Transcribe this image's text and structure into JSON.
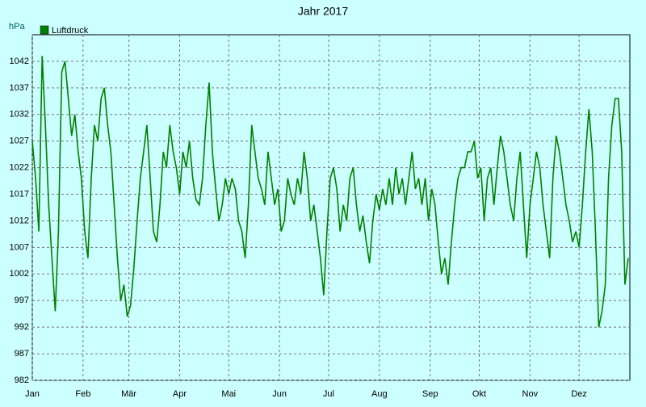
{
  "chart_data": {
    "type": "line",
    "title": "Jahr 2017",
    "y_label": "hPa",
    "xlim": [
      0,
      365
    ],
    "xticks": [
      {
        "value": 0,
        "label": "Jan"
      },
      {
        "value": 31,
        "label": "Feb"
      },
      {
        "value": 59,
        "label": "Mär"
      },
      {
        "value": 90,
        "label": "Apr"
      },
      {
        "value": 120,
        "label": "Mai"
      },
      {
        "value": 151,
        "label": "Jun"
      },
      {
        "value": 181,
        "label": "Jul"
      },
      {
        "value": 212,
        "label": "Aug"
      },
      {
        "value": 243,
        "label": "Sep"
      },
      {
        "value": 273,
        "label": "Okt"
      },
      {
        "value": 304,
        "label": "Nov"
      },
      {
        "value": 334,
        "label": "Dez"
      }
    ],
    "ylim": [
      982,
      1047
    ],
    "yticks": [
      982,
      987,
      992,
      997,
      1002,
      1007,
      1012,
      1017,
      1022,
      1027,
      1032,
      1037,
      1042
    ],
    "grid": true,
    "x": [
      0,
      2,
      4,
      6,
      8,
      10,
      12,
      14,
      16,
      18,
      20,
      22,
      24,
      26,
      28,
      30,
      32,
      34,
      36,
      38,
      40,
      42,
      44,
      46,
      48,
      50,
      52,
      54,
      56,
      58,
      60,
      62,
      64,
      66,
      68,
      70,
      72,
      74,
      76,
      78,
      80,
      82,
      84,
      86,
      88,
      90,
      92,
      94,
      96,
      98,
      100,
      102,
      104,
      106,
      108,
      110,
      112,
      114,
      116,
      118,
      120,
      122,
      124,
      126,
      128,
      130,
      132,
      134,
      136,
      138,
      140,
      142,
      144,
      146,
      148,
      150,
      152,
      154,
      156,
      158,
      160,
      162,
      164,
      166,
      168,
      170,
      172,
      174,
      176,
      178,
      180,
      182,
      184,
      186,
      188,
      190,
      192,
      194,
      196,
      198,
      200,
      202,
      204,
      206,
      208,
      210,
      212,
      214,
      216,
      218,
      220,
      222,
      224,
      226,
      228,
      230,
      232,
      234,
      236,
      238,
      240,
      242,
      244,
      246,
      248,
      250,
      252,
      254,
      256,
      258,
      260,
      262,
      264,
      266,
      268,
      270,
      272,
      274,
      276,
      278,
      280,
      282,
      284,
      286,
      288,
      290,
      292,
      294,
      296,
      298,
      300,
      302,
      304,
      306,
      308,
      310,
      312,
      314,
      316,
      318,
      320,
      322,
      324,
      326,
      328,
      330,
      332,
      334,
      336,
      338,
      340,
      342,
      344,
      346,
      348,
      350,
      352,
      354,
      356,
      358,
      360,
      362,
      364
    ],
    "series": [
      {
        "name": "Luftdruck",
        "color": "#008000",
        "values": [
          1027,
          1020,
          1010,
          1043,
          1030,
          1015,
          1005,
          995,
          1010,
          1040,
          1042,
          1035,
          1028,
          1032,
          1025,
          1020,
          1010,
          1005,
          1020,
          1030,
          1027,
          1035,
          1037,
          1030,
          1025,
          1015,
          1005,
          997,
          1000,
          994,
          996,
          1003,
          1012,
          1020,
          1025,
          1030,
          1020,
          1010,
          1008,
          1015,
          1025,
          1022,
          1030,
          1025,
          1022,
          1017,
          1025,
          1022,
          1027,
          1020,
          1016,
          1015,
          1020,
          1030,
          1038,
          1025,
          1018,
          1012,
          1015,
          1020,
          1017,
          1020,
          1018,
          1012,
          1010,
          1005,
          1015,
          1030,
          1025,
          1020,
          1018,
          1015,
          1025,
          1020,
          1015,
          1018,
          1010,
          1012,
          1020,
          1017,
          1015,
          1020,
          1017,
          1025,
          1020,
          1012,
          1015,
          1010,
          1005,
          998,
          1010,
          1020,
          1022,
          1018,
          1010,
          1015,
          1012,
          1020,
          1022,
          1015,
          1010,
          1013,
          1008,
          1004,
          1012,
          1017,
          1014,
          1018,
          1015,
          1020,
          1015,
          1022,
          1017,
          1020,
          1015,
          1020,
          1025,
          1018,
          1020,
          1015,
          1020,
          1012,
          1018,
          1015,
          1008,
          1002,
          1005,
          1000,
          1008,
          1015,
          1020,
          1022,
          1022,
          1025,
          1025,
          1027,
          1020,
          1022,
          1012,
          1020,
          1022,
          1015,
          1022,
          1028,
          1025,
          1020,
          1015,
          1012,
          1020,
          1025,
          1015,
          1005,
          1015,
          1020,
          1025,
          1022,
          1015,
          1010,
          1005,
          1020,
          1028,
          1025,
          1020,
          1015,
          1012,
          1008,
          1010,
          1007,
          1015,
          1025,
          1033,
          1025,
          1010,
          992,
          995,
          1000,
          1020,
          1030,
          1035,
          1035,
          1025,
          1000,
          1005
        ]
      }
    ]
  }
}
